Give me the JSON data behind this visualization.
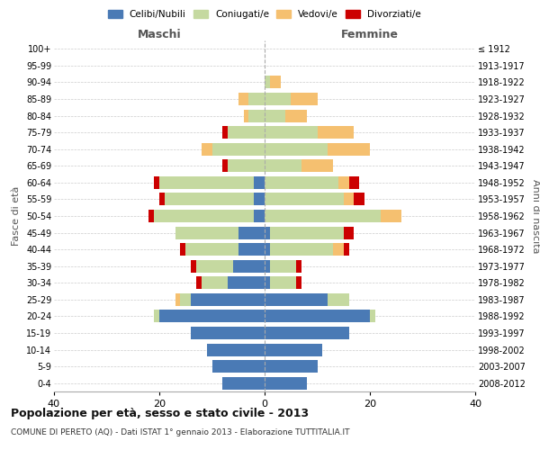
{
  "age_groups": [
    "0-4",
    "5-9",
    "10-14",
    "15-19",
    "20-24",
    "25-29",
    "30-34",
    "35-39",
    "40-44",
    "45-49",
    "50-54",
    "55-59",
    "60-64",
    "65-69",
    "70-74",
    "75-79",
    "80-84",
    "85-89",
    "90-94",
    "95-99",
    "100+"
  ],
  "birth_years": [
    "2008-2012",
    "2003-2007",
    "1998-2002",
    "1993-1997",
    "1988-1992",
    "1983-1987",
    "1978-1982",
    "1973-1977",
    "1968-1972",
    "1963-1967",
    "1958-1962",
    "1953-1957",
    "1948-1952",
    "1943-1947",
    "1938-1942",
    "1933-1937",
    "1928-1932",
    "1923-1927",
    "1918-1922",
    "1913-1917",
    "≤ 1912"
  ],
  "males": {
    "celibi": [
      8,
      10,
      11,
      14,
      20,
      14,
      7,
      6,
      5,
      5,
      2,
      2,
      2,
      0,
      0,
      0,
      0,
      0,
      0,
      0,
      0
    ],
    "coniugati": [
      0,
      0,
      0,
      0,
      1,
      2,
      5,
      7,
      10,
      12,
      19,
      17,
      18,
      7,
      10,
      7,
      3,
      3,
      0,
      0,
      0
    ],
    "vedovi": [
      0,
      0,
      0,
      0,
      0,
      1,
      0,
      0,
      0,
      0,
      0,
      0,
      0,
      0,
      2,
      0,
      1,
      2,
      0,
      0,
      0
    ],
    "divorziati": [
      0,
      0,
      0,
      0,
      0,
      0,
      1,
      1,
      1,
      0,
      1,
      1,
      1,
      1,
      0,
      1,
      0,
      0,
      0,
      0,
      0
    ]
  },
  "females": {
    "nubili": [
      8,
      10,
      11,
      16,
      20,
      12,
      1,
      1,
      1,
      1,
      0,
      0,
      0,
      0,
      0,
      0,
      0,
      0,
      0,
      0,
      0
    ],
    "coniugate": [
      0,
      0,
      0,
      0,
      1,
      4,
      5,
      5,
      12,
      14,
      22,
      15,
      14,
      7,
      12,
      10,
      4,
      5,
      1,
      0,
      0
    ],
    "vedove": [
      0,
      0,
      0,
      0,
      0,
      0,
      0,
      0,
      2,
      0,
      4,
      2,
      2,
      6,
      8,
      7,
      4,
      5,
      2,
      0,
      0
    ],
    "divorziate": [
      0,
      0,
      0,
      0,
      0,
      0,
      1,
      1,
      1,
      2,
      0,
      2,
      2,
      0,
      0,
      0,
      0,
      0,
      0,
      0,
      0
    ]
  },
  "color_celibi": "#4a7ab5",
  "color_coniugati": "#c5d9a0",
  "color_vedovi": "#f5c070",
  "color_divorziati": "#cc0000",
  "xlim": 40,
  "title": "Popolazione per età, sesso e stato civile - 2013",
  "subtitle": "COMUNE DI PERETO (AQ) - Dati ISTAT 1° gennaio 2013 - Elaborazione TUTTITALIA.IT",
  "ylabel_left": "Fasce di età",
  "ylabel_right": "Anni di nascita",
  "xlabel_left": "Maschi",
  "xlabel_right": "Femmine",
  "bg_color": "#ffffff",
  "grid_color": "#cccccc"
}
